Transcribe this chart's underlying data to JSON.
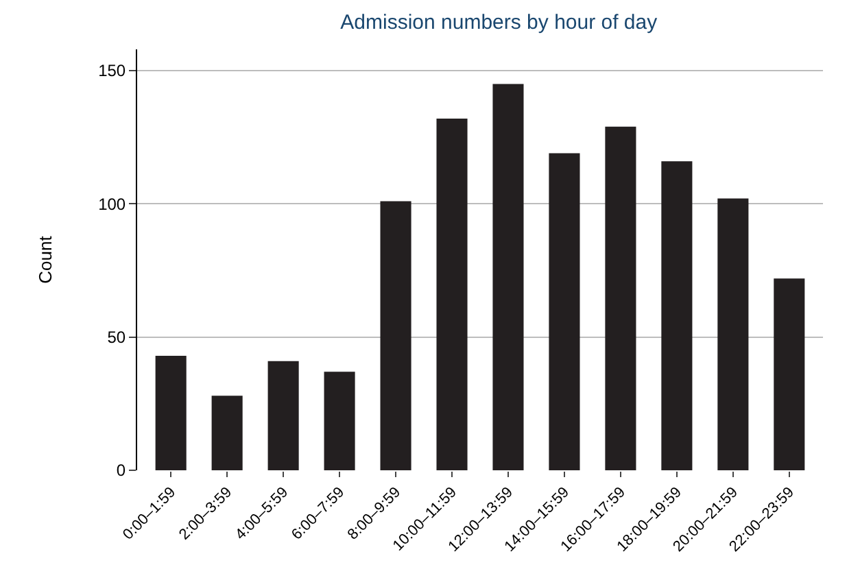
{
  "chart_data": {
    "type": "bar",
    "title": "Admission numbers by hour of day",
    "ylabel": "Count",
    "categories": [
      "0:00–1:59",
      "2:00–3:59",
      "4:00–5:59",
      "6:00–7:59",
      "8:00–9:59",
      "10:00–11:59",
      "12:00–13:59",
      "14:00–15:59",
      "16:00–17:59",
      "18:00–19:59",
      "20:00–21:59",
      "22:00–23:59"
    ],
    "values": [
      43,
      28,
      41,
      37,
      101,
      132,
      145,
      119,
      129,
      116,
      102,
      72
    ],
    "color": "#231f20",
    "ylim": [
      0,
      158
    ],
    "yticks": [
      0,
      50,
      100,
      150
    ],
    "grid": "y"
  }
}
